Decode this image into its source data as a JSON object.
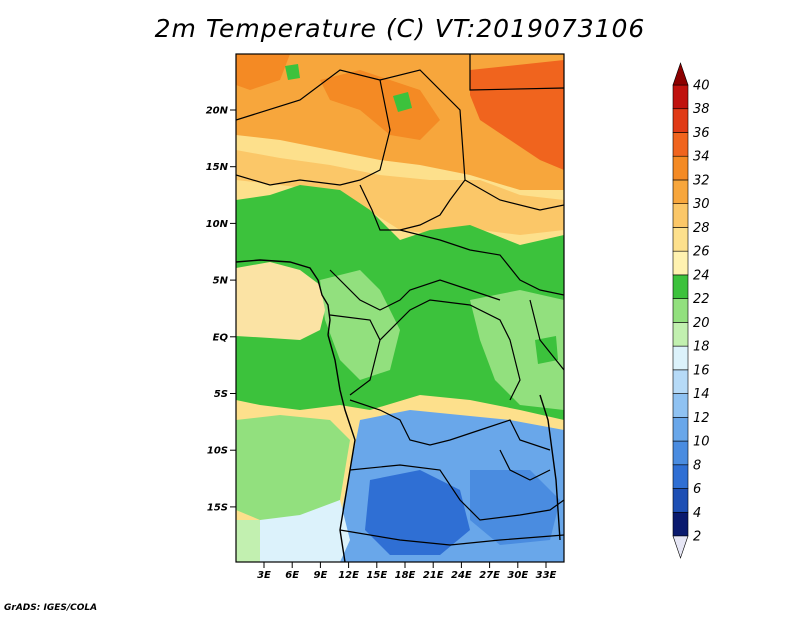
{
  "title": "2m Temperature (C) VT:2019073106",
  "credit": "GrADS: IGES/COLA",
  "map": {
    "x_ticks": [
      "3E",
      "6E",
      "9E",
      "12E",
      "15E",
      "18E",
      "21E",
      "24E",
      "27E",
      "30E",
      "33E"
    ],
    "y_ticks": [
      "20N",
      "15N",
      "10N",
      "5N",
      "EQ",
      "5S",
      "10S",
      "15S"
    ]
  },
  "colorbar": {
    "levels": [
      "2",
      "4",
      "6",
      "8",
      "10",
      "12",
      "14",
      "16",
      "18",
      "20",
      "22",
      "24",
      "26",
      "28",
      "30",
      "32",
      "34",
      "36",
      "38",
      "40"
    ],
    "colors": [
      "#e6e6f5",
      "#0a1a6e",
      "#1e4fb4",
      "#2f6fd4",
      "#4a8ce0",
      "#69a7ea",
      "#8fc2f2",
      "#b6daf7",
      "#dcf2fb",
      "#c2f0b0",
      "#92e07e",
      "#3cc23c",
      "#fff2b0",
      "#fde08c",
      "#fbc768",
      "#f7a63c",
      "#f48a24",
      "#f0641e",
      "#e03a16",
      "#c0120e",
      "#8c0000"
    ]
  },
  "legend_colors": {
    "land_cool": "#5aaef0",
    "land_mild": "#92e07e",
    "land_warm": "#3cc23c",
    "sea_warm": "#fbe3a4",
    "hot": "#f7a63c",
    "very_hot": "#f0641e"
  }
}
